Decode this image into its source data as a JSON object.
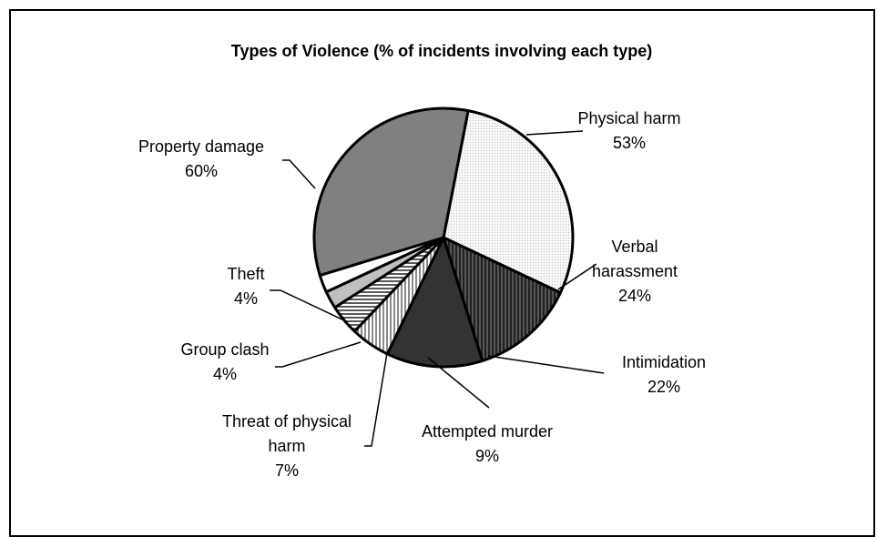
{
  "chart_data": {
    "type": "pie",
    "title": "Types of Violence (% of incidents involving each type)",
    "slices": [
      {
        "name": "Physical harm",
        "label_lines": [
          "Physical harm"
        ],
        "pct_label": "53%",
        "value": 53,
        "fill": "dots"
      },
      {
        "name": "Verbal harassment",
        "label_lines": [
          "Verbal",
          "harassment"
        ],
        "pct_label": "24%",
        "value": 24,
        "fill": "vlines"
      },
      {
        "name": "Intimidation",
        "label_lines": [
          "Intimidation"
        ],
        "pct_label": "22%",
        "value": 22,
        "fill": "#333333"
      },
      {
        "name": "Attempted murder",
        "label_lines": [
          "Attempted murder"
        ],
        "pct_label": "9%",
        "value": 9,
        "fill": "vlines-light"
      },
      {
        "name": "Threat of physical harm",
        "label_lines": [
          "Threat of physical",
          "harm"
        ],
        "pct_label": "7%",
        "value": 7,
        "fill": "hlines"
      },
      {
        "name": "Group clash",
        "label_lines": [
          "Group clash"
        ],
        "pct_label": "4%",
        "value": 4,
        "fill": "#c0c0c0"
      },
      {
        "name": "Theft",
        "label_lines": [
          "Theft"
        ],
        "pct_label": "4%",
        "value": 4,
        "fill": "#ffffff"
      },
      {
        "name": "Property damage",
        "label_lines": [
          "Property damage"
        ],
        "pct_label": "60%",
        "value": 60,
        "fill": "#808080"
      }
    ],
    "legend": "none"
  }
}
